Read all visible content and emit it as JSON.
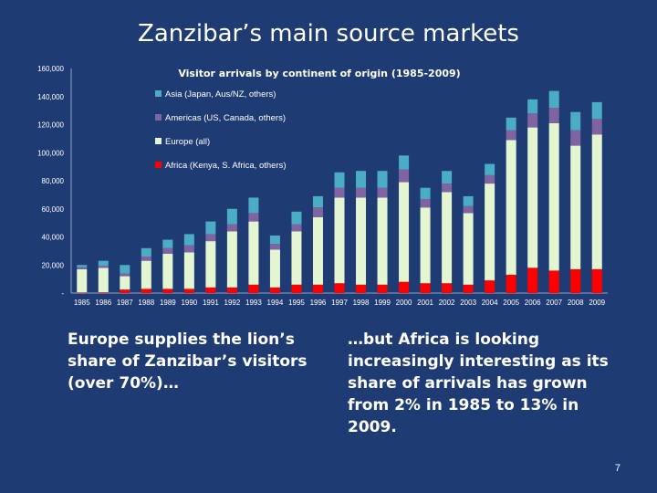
{
  "slide": {
    "title": "Zanzibar’s main source markets",
    "caption_left": "Europe supplies the lion’s share of Zanzibar’s visitors (over 70%)…",
    "caption_right": "…but Africa is looking increasingly interesting as its share of arrivals has grown from 2% in 1985 to 13% in 2009.",
    "page_number": "7"
  },
  "chart_data": {
    "type": "bar",
    "stacked": true,
    "title": "Visitor arrivals by continent of origin (1985-2009)",
    "xlabel": "",
    "ylabel": "",
    "ylim": [
      0,
      160000
    ],
    "y_ticks": [
      "-",
      "20,000",
      "40,000",
      "60,000",
      "80,000",
      "100,000",
      "120,000",
      "140,000",
      "160,000"
    ],
    "grid": false,
    "legend_position": "top-left inside plot",
    "categories": [
      "1985",
      "1986",
      "1987",
      "1988",
      "1989",
      "1990",
      "1991",
      "1992",
      "1993",
      "1994",
      "1995",
      "1996",
      "1997",
      "1998",
      "1999",
      "2000",
      "2001",
      "2002",
      "2003",
      "2004",
      "2005",
      "2006",
      "2007",
      "2008",
      "2009"
    ],
    "series": [
      {
        "name": "Africa (Kenya, S. Africa, others)",
        "color": "#ff0000",
        "values": [
          400,
          500,
          2500,
          3000,
          3000,
          3000,
          4000,
          4000,
          6000,
          4000,
          6000,
          6000,
          7000,
          6000,
          6000,
          8000,
          7000,
          7000,
          6000,
          9000,
          13000,
          18000,
          16000,
          17000,
          17000
        ]
      },
      {
        "name": "Europe (all)",
        "color": "#e4f5d2",
        "values": [
          16600,
          17500,
          9500,
          20000,
          25000,
          26000,
          33000,
          40000,
          45000,
          27000,
          38000,
          48000,
          61000,
          62000,
          62000,
          71000,
          54000,
          65000,
          51000,
          69000,
          96000,
          100000,
          105000,
          88000,
          96000
        ]
      },
      {
        "name": "Americas (US, Canada, others)",
        "color": "#8064a2",
        "values": [
          1500,
          1500,
          2000,
          3000,
          4000,
          5000,
          5000,
          5000,
          6000,
          4000,
          5000,
          7000,
          7000,
          7000,
          7000,
          9000,
          6000,
          6000,
          5000,
          6000,
          7000,
          10000,
          11000,
          11000,
          11000
        ]
      },
      {
        "name": "Asia (Japan, Aus/NZ, others)",
        "color": "#4bacc6",
        "values": [
          1500,
          3500,
          6000,
          6000,
          6000,
          8000,
          9000,
          11000,
          11000,
          6000,
          9000,
          8000,
          11000,
          12000,
          12000,
          10000,
          8000,
          9000,
          7000,
          8000,
          9000,
          10000,
          12000,
          13000,
          12000
        ]
      }
    ]
  }
}
